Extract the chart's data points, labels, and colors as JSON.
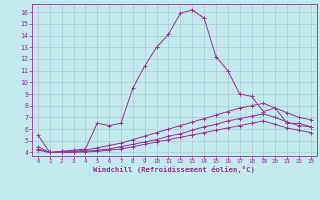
{
  "xlabel": "Windchill (Refroidissement éolien,°C)",
  "background_color": "#c5eaed",
  "line_color": "#993399",
  "grid_color": "#aacdd4",
  "xlim": [
    -0.5,
    23.5
  ],
  "ylim": [
    3.7,
    16.7
  ],
  "xticks": [
    0,
    1,
    2,
    3,
    4,
    5,
    6,
    7,
    8,
    9,
    10,
    11,
    12,
    13,
    14,
    15,
    16,
    17,
    18,
    19,
    20,
    21,
    22,
    23
  ],
  "yticks": [
    4,
    5,
    6,
    7,
    8,
    9,
    10,
    11,
    12,
    13,
    14,
    15,
    16
  ],
  "lines": [
    {
      "x": [
        0,
        1,
        2,
        3,
        4,
        5,
        6,
        7,
        8,
        9,
        10,
        11,
        12,
        13,
        14,
        15,
        16,
        17,
        18,
        19,
        20,
        21,
        22,
        23
      ],
      "y": [
        5.5,
        4.0,
        4.1,
        4.2,
        4.3,
        6.5,
        6.3,
        6.5,
        9.5,
        11.4,
        13.0,
        14.1,
        15.9,
        16.2,
        15.5,
        12.2,
        11.0,
        9.0,
        8.8,
        7.5,
        7.8,
        6.5,
        6.5,
        6.2
      ]
    },
    {
      "x": [
        0,
        1,
        2,
        3,
        4,
        5,
        6,
        7,
        8,
        9,
        10,
        11,
        12,
        13,
        14,
        15,
        16,
        17,
        18,
        19,
        20,
        21,
        22,
        23
      ],
      "y": [
        4.5,
        4.0,
        4.1,
        4.1,
        4.2,
        4.4,
        4.6,
        4.8,
        5.1,
        5.4,
        5.7,
        6.0,
        6.3,
        6.6,
        6.9,
        7.2,
        7.5,
        7.8,
        8.0,
        8.2,
        7.8,
        7.4,
        7.0,
        6.8
      ]
    },
    {
      "x": [
        0,
        1,
        2,
        3,
        4,
        5,
        6,
        7,
        8,
        9,
        10,
        11,
        12,
        13,
        14,
        15,
        16,
        17,
        18,
        19,
        20,
        21,
        22,
        23
      ],
      "y": [
        4.3,
        4.0,
        4.05,
        4.05,
        4.1,
        4.2,
        4.3,
        4.5,
        4.7,
        4.9,
        5.1,
        5.4,
        5.6,
        5.9,
        6.2,
        6.4,
        6.7,
        6.9,
        7.1,
        7.3,
        7.0,
        6.6,
        6.3,
        6.2
      ]
    },
    {
      "x": [
        0,
        1,
        2,
        3,
        4,
        5,
        6,
        7,
        8,
        9,
        10,
        11,
        12,
        13,
        14,
        15,
        16,
        17,
        18,
        19,
        20,
        21,
        22,
        23
      ],
      "y": [
        4.2,
        4.0,
        4.0,
        4.0,
        4.05,
        4.1,
        4.2,
        4.3,
        4.5,
        4.7,
        4.9,
        5.1,
        5.3,
        5.5,
        5.7,
        5.9,
        6.1,
        6.3,
        6.5,
        6.7,
        6.4,
        6.1,
        5.9,
        5.7
      ]
    }
  ]
}
